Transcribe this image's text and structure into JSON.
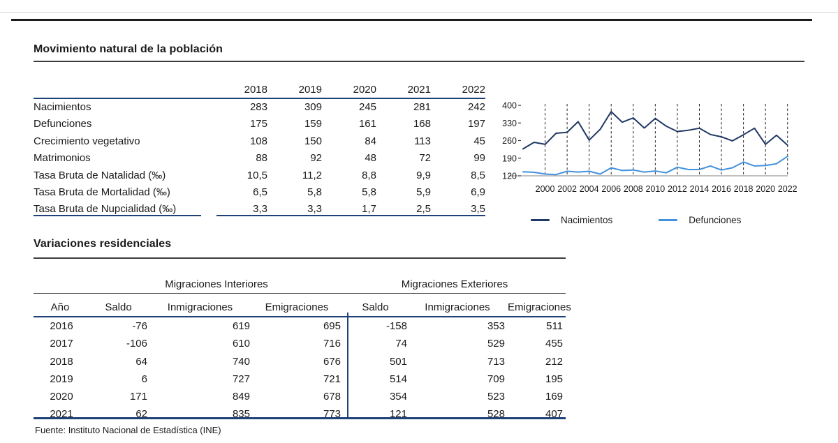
{
  "page": {
    "section1": {
      "title": "Movimiento natural de la población",
      "table": {
        "col_headers": [
          "2018",
          "2019",
          "2020",
          "2021",
          "2022"
        ],
        "rows": [
          {
            "label": "Nacimientos",
            "values": [
              "283",
              "309",
              "245",
              "281",
              "242"
            ]
          },
          {
            "label": "Defunciones",
            "values": [
              "175",
              "159",
              "161",
              "168",
              "197"
            ]
          },
          {
            "label": "Crecimiento vegetativo",
            "values": [
              "108",
              "150",
              "84",
              "113",
              "45"
            ]
          },
          {
            "label": "Matrimonios",
            "values": [
              "88",
              "92",
              "48",
              "72",
              "99"
            ]
          },
          {
            "label": "Tasa Bruta de Natalidad (‰)",
            "values": [
              "10,5",
              "11,2",
              "8,8",
              "9,9",
              "8,5"
            ]
          },
          {
            "label": "Tasa Bruta de Mortalidad (‰)",
            "values": [
              "6,5",
              "5,8",
              "5,8",
              "5,9",
              "6,9"
            ]
          },
          {
            "label": "Tasa Bruta de Nupcialidad (‰)",
            "values": [
              "3,3",
              "3,3",
              "1,7",
              "2,5",
              "3,5"
            ]
          }
        ]
      }
    },
    "section2": {
      "title": "Variaciones residenciales",
      "table": {
        "group_headers": [
          "Migraciones Interiores",
          "Migraciones Exteriores"
        ],
        "col_headers": [
          "Año",
          "Saldo",
          "Inmigraciones",
          "Emigraciones",
          "Saldo",
          "Inmigraciones",
          "Emigraciones"
        ],
        "rows": [
          [
            "2016",
            "-76",
            "619",
            "695",
            "-158",
            "353",
            "511"
          ],
          [
            "2017",
            "-106",
            "610",
            "716",
            "74",
            "529",
            "455"
          ],
          [
            "2018",
            "64",
            "740",
            "676",
            "501",
            "713",
            "212"
          ],
          [
            "2019",
            "6",
            "727",
            "721",
            "514",
            "709",
            "195"
          ],
          [
            "2020",
            "171",
            "849",
            "678",
            "354",
            "523",
            "169"
          ],
          [
            "2021",
            "62",
            "835",
            "773",
            "121",
            "528",
            "407"
          ]
        ]
      }
    },
    "footer": {
      "source": "Fuente: Instituto Nacional de Estadística (INE)"
    }
  },
  "chart_data": {
    "type": "line",
    "x": [
      1998,
      1999,
      2000,
      2001,
      2002,
      2003,
      2004,
      2005,
      2006,
      2007,
      2008,
      2009,
      2010,
      2011,
      2012,
      2013,
      2014,
      2015,
      2016,
      2017,
      2018,
      2019,
      2020,
      2021,
      2022
    ],
    "series": [
      {
        "name": "Nacimientos",
        "color": "#1f3864",
        "values": [
          227,
          253,
          245,
          289,
          293,
          335,
          262,
          305,
          375,
          333,
          350,
          310,
          348,
          317,
          296,
          301,
          309,
          284,
          275,
          259,
          283,
          309,
          245,
          281,
          242
        ]
      },
      {
        "name": "Defunciones",
        "color": "#4191df",
        "values": [
          136,
          134,
          127,
          125,
          138,
          135,
          138,
          127,
          152,
          141,
          143,
          135,
          139,
          132,
          154,
          145,
          145,
          159,
          143,
          152,
          175,
          159,
          161,
          168,
          197
        ]
      }
    ],
    "ylim": [
      120,
      400
    ],
    "yticks": [
      120,
      190,
      260,
      330,
      400
    ],
    "xtick_labels": [
      "2000",
      "2002",
      "2004",
      "2006",
      "2008",
      "2010",
      "2012",
      "2014",
      "2016",
      "2018",
      "2020",
      "2022"
    ],
    "grid": "vertical-dashed",
    "legend_position": "bottom"
  }
}
